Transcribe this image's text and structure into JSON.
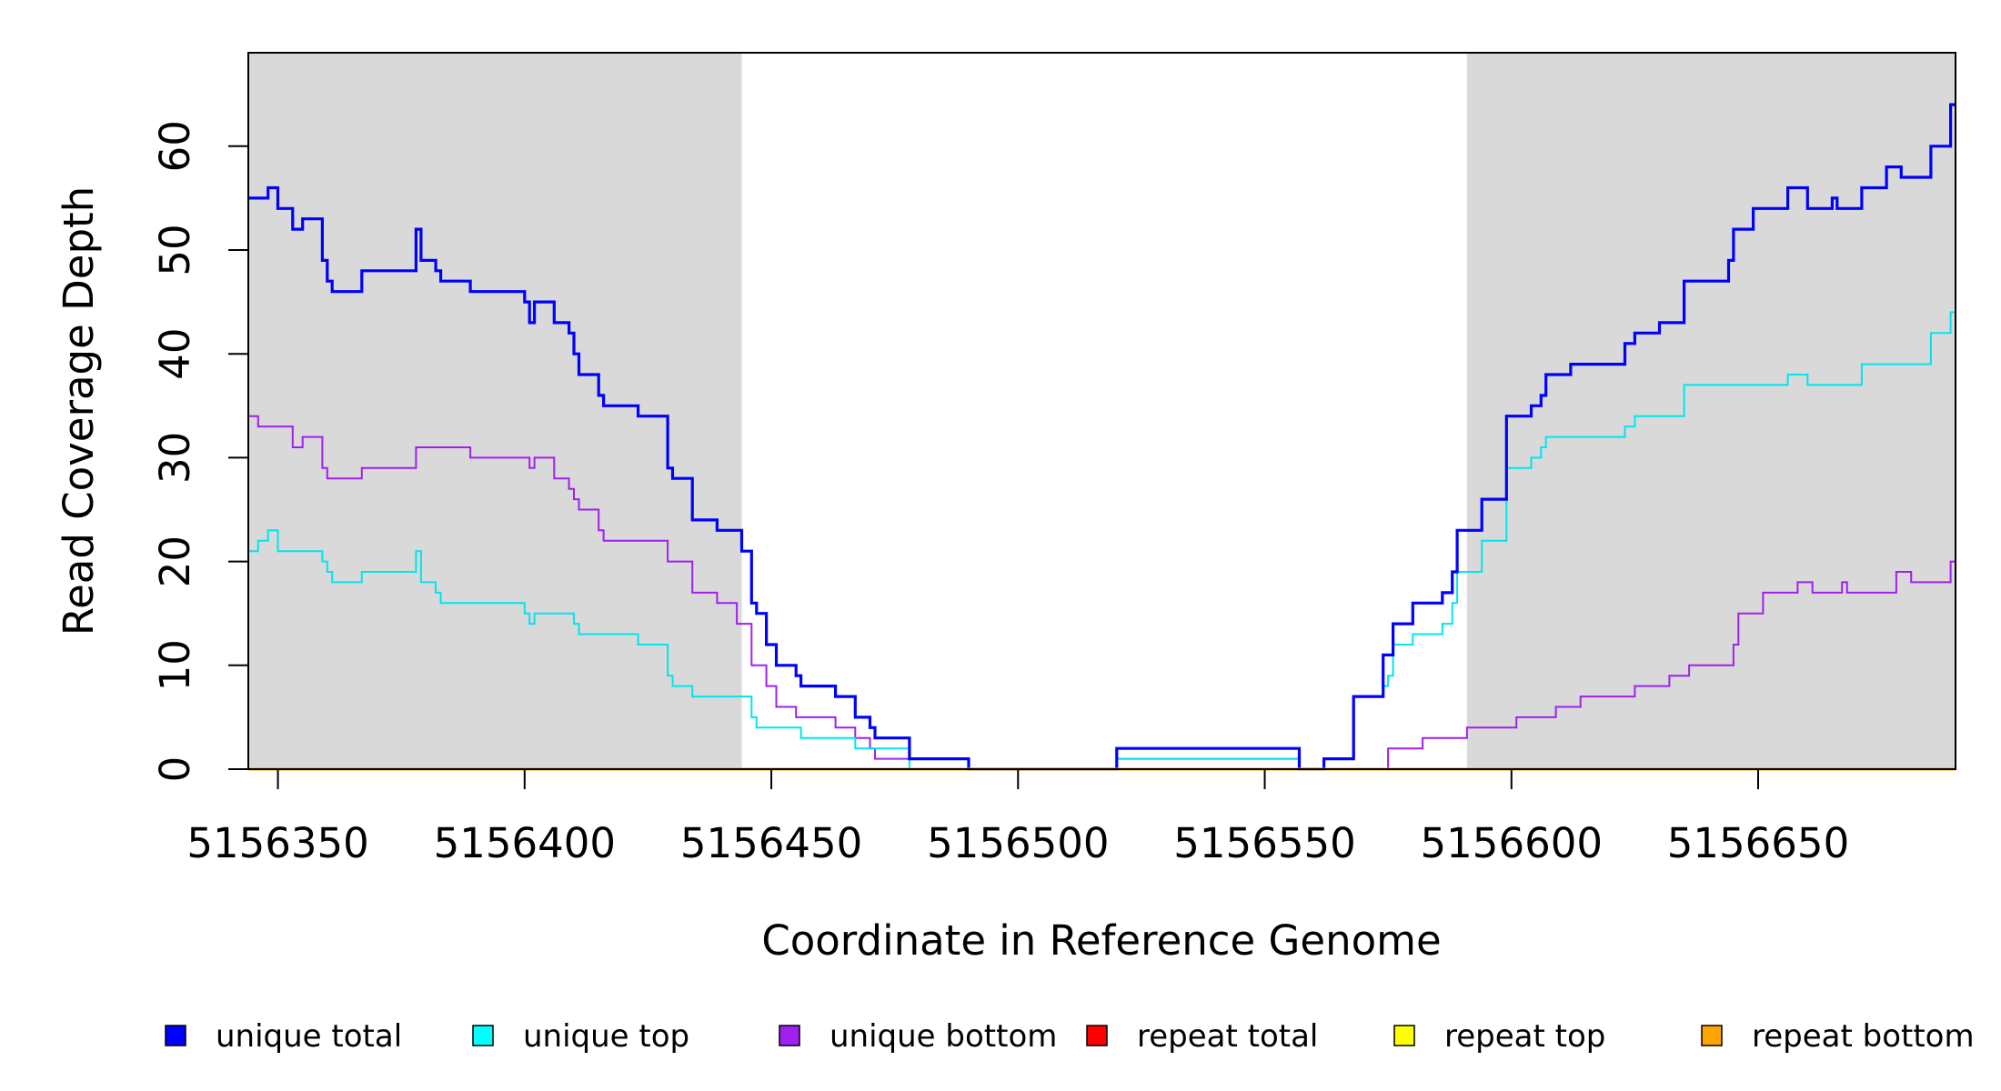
{
  "chart_data": {
    "type": "line",
    "title": "",
    "xlabel": "Coordinate in Reference Genome",
    "ylabel": "Read Coverage Depth",
    "xlim": [
      5156344,
      5156690
    ],
    "ylim": [
      0,
      69
    ],
    "x_ticks": [
      5156350,
      5156400,
      5156450,
      5156500,
      5156550,
      5156600,
      5156650
    ],
    "y_ticks": [
      0,
      10,
      20,
      30,
      40,
      50,
      60
    ],
    "shaded_regions": [
      [
        5156344,
        5156444
      ],
      [
        5156591,
        5156690
      ]
    ],
    "shade_color": "#d9d9d9",
    "grid": false,
    "legend_position": "bottom",
    "series": [
      {
        "name": "unique total",
        "color": "#0000ff",
        "step": true,
        "points": [
          [
            5156344,
            55
          ],
          [
            5156348,
            56
          ],
          [
            5156350,
            54
          ],
          [
            5156353,
            52
          ],
          [
            5156355,
            53
          ],
          [
            5156359,
            49
          ],
          [
            5156360,
            47
          ],
          [
            5156361,
            46
          ],
          [
            5156367,
            48
          ],
          [
            5156378,
            52
          ],
          [
            5156379,
            49
          ],
          [
            5156382,
            48
          ],
          [
            5156383,
            47
          ],
          [
            5156389,
            46
          ],
          [
            5156400,
            45
          ],
          [
            5156401,
            43
          ],
          [
            5156402,
            45
          ],
          [
            5156406,
            43
          ],
          [
            5156409,
            42
          ],
          [
            5156410,
            40
          ],
          [
            5156411,
            38
          ],
          [
            5156415,
            36
          ],
          [
            5156416,
            35
          ],
          [
            5156423,
            34
          ],
          [
            5156429,
            29
          ],
          [
            5156430,
            28
          ],
          [
            5156434,
            24
          ],
          [
            5156439,
            23
          ],
          [
            5156444,
            21
          ],
          [
            5156446,
            16
          ],
          [
            5156447,
            15
          ],
          [
            5156449,
            12
          ],
          [
            5156451,
            10
          ],
          [
            5156455,
            9
          ],
          [
            5156456,
            8
          ],
          [
            5156463,
            7
          ],
          [
            5156467,
            5
          ],
          [
            5156470,
            4
          ],
          [
            5156471,
            3
          ],
          [
            5156478,
            1
          ],
          [
            5156490,
            0
          ],
          [
            5156520,
            2
          ],
          [
            5156557,
            0
          ],
          [
            5156562,
            1
          ],
          [
            5156568,
            7
          ],
          [
            5156574,
            11
          ],
          [
            5156576,
            14
          ],
          [
            5156580,
            16
          ],
          [
            5156586,
            17
          ],
          [
            5156588,
            19
          ],
          [
            5156589,
            23
          ],
          [
            5156594,
            26
          ],
          [
            5156599,
            34
          ],
          [
            5156604,
            35
          ],
          [
            5156606,
            36
          ],
          [
            5156607,
            38
          ],
          [
            5156612,
            39
          ],
          [
            5156623,
            41
          ],
          [
            5156625,
            42
          ],
          [
            5156630,
            43
          ],
          [
            5156635,
            47
          ],
          [
            5156644,
            49
          ],
          [
            5156645,
            52
          ],
          [
            5156649,
            54
          ],
          [
            5156656,
            56
          ],
          [
            5156660,
            54
          ],
          [
            5156665,
            55
          ],
          [
            5156666,
            54
          ],
          [
            5156671,
            56
          ],
          [
            5156676,
            58
          ],
          [
            5156679,
            57
          ],
          [
            5156685,
            60
          ],
          [
            5156689,
            64
          ]
        ]
      },
      {
        "name": "unique top",
        "color": "#00e5ee",
        "step": true,
        "points": [
          [
            5156344,
            21
          ],
          [
            5156346,
            22
          ],
          [
            5156348,
            23
          ],
          [
            5156350,
            21
          ],
          [
            5156359,
            20
          ],
          [
            5156360,
            19
          ],
          [
            5156361,
            18
          ],
          [
            5156367,
            19
          ],
          [
            5156378,
            21
          ],
          [
            5156379,
            18
          ],
          [
            5156382,
            17
          ],
          [
            5156383,
            16
          ],
          [
            5156400,
            15
          ],
          [
            5156401,
            14
          ],
          [
            5156402,
            15
          ],
          [
            5156410,
            14
          ],
          [
            5156411,
            13
          ],
          [
            5156423,
            12
          ],
          [
            5156429,
            9
          ],
          [
            5156430,
            8
          ],
          [
            5156434,
            7
          ],
          [
            5156444,
            7
          ],
          [
            5156446,
            5
          ],
          [
            5156447,
            4
          ],
          [
            5156450,
            4
          ],
          [
            5156456,
            3
          ],
          [
            5156467,
            2
          ],
          [
            5156478,
            0
          ],
          [
            5156490,
            0
          ],
          [
            5156520,
            1
          ],
          [
            5156557,
            0
          ],
          [
            5156562,
            1
          ],
          [
            5156568,
            7
          ],
          [
            5156574,
            8
          ],
          [
            5156575,
            9
          ],
          [
            5156576,
            12
          ],
          [
            5156580,
            13
          ],
          [
            5156586,
            14
          ],
          [
            5156588,
            16
          ],
          [
            5156589,
            19
          ],
          [
            5156594,
            22
          ],
          [
            5156599,
            29
          ],
          [
            5156604,
            30
          ],
          [
            5156606,
            31
          ],
          [
            5156607,
            32
          ],
          [
            5156623,
            33
          ],
          [
            5156625,
            34
          ],
          [
            5156635,
            37
          ],
          [
            5156656,
            38
          ],
          [
            5156660,
            37
          ],
          [
            5156671,
            39
          ],
          [
            5156685,
            42
          ],
          [
            5156689,
            44
          ]
        ]
      },
      {
        "name": "unique bottom",
        "color": "#a020f0",
        "step": true,
        "points": [
          [
            5156344,
            34
          ],
          [
            5156346,
            33
          ],
          [
            5156353,
            31
          ],
          [
            5156355,
            32
          ],
          [
            5156359,
            29
          ],
          [
            5156360,
            28
          ],
          [
            5156367,
            29
          ],
          [
            5156378,
            31
          ],
          [
            5156389,
            30
          ],
          [
            5156401,
            29
          ],
          [
            5156402,
            30
          ],
          [
            5156406,
            28
          ],
          [
            5156409,
            27
          ],
          [
            5156410,
            26
          ],
          [
            5156411,
            25
          ],
          [
            5156415,
            23
          ],
          [
            5156416,
            22
          ],
          [
            5156429,
            20
          ],
          [
            5156434,
            17
          ],
          [
            5156439,
            16
          ],
          [
            5156443,
            14
          ],
          [
            5156446,
            10
          ],
          [
            5156449,
            8
          ],
          [
            5156451,
            6
          ],
          [
            5156455,
            5
          ],
          [
            5156463,
            4
          ],
          [
            5156467,
            3
          ],
          [
            5156470,
            2
          ],
          [
            5156471,
            1
          ],
          [
            5156478,
            1
          ],
          [
            5156490,
            0
          ],
          [
            5156520,
            1
          ],
          [
            5156557,
            0
          ],
          [
            5156575,
            2
          ],
          [
            5156582,
            3
          ],
          [
            5156591,
            4
          ],
          [
            5156601,
            5
          ],
          [
            5156609,
            6
          ],
          [
            5156614,
            7
          ],
          [
            5156625,
            8
          ],
          [
            5156632,
            9
          ],
          [
            5156636,
            10
          ],
          [
            5156645,
            12
          ],
          [
            5156646,
            15
          ],
          [
            5156651,
            17
          ],
          [
            5156658,
            18
          ],
          [
            5156661,
            17
          ],
          [
            5156667,
            18
          ],
          [
            5156668,
            17
          ],
          [
            5156678,
            19
          ],
          [
            5156681,
            18
          ],
          [
            5156689,
            20
          ]
        ]
      },
      {
        "name": "repeat total",
        "color": "#ff0000",
        "step": true,
        "points": [
          [
            5156344,
            0
          ],
          [
            5156690,
            0
          ]
        ]
      },
      {
        "name": "repeat top",
        "color": "#ffff00",
        "step": true,
        "points": [
          [
            5156344,
            0
          ],
          [
            5156690,
            0
          ]
        ]
      },
      {
        "name": "repeat bottom",
        "color": "#ffa500",
        "step": true,
        "points": [
          [
            5156344,
            0
          ],
          [
            5156690,
            0
          ]
        ]
      }
    ],
    "legend": [
      {
        "label": "unique total",
        "color": "#0000ff"
      },
      {
        "label": "unique top",
        "color": "#00ffff"
      },
      {
        "label": "unique bottom",
        "color": "#a020f0"
      },
      {
        "label": "repeat total",
        "color": "#ff0000"
      },
      {
        "label": "repeat top",
        "color": "#ffff00"
      },
      {
        "label": "repeat bottom",
        "color": "#ffa500"
      }
    ]
  }
}
